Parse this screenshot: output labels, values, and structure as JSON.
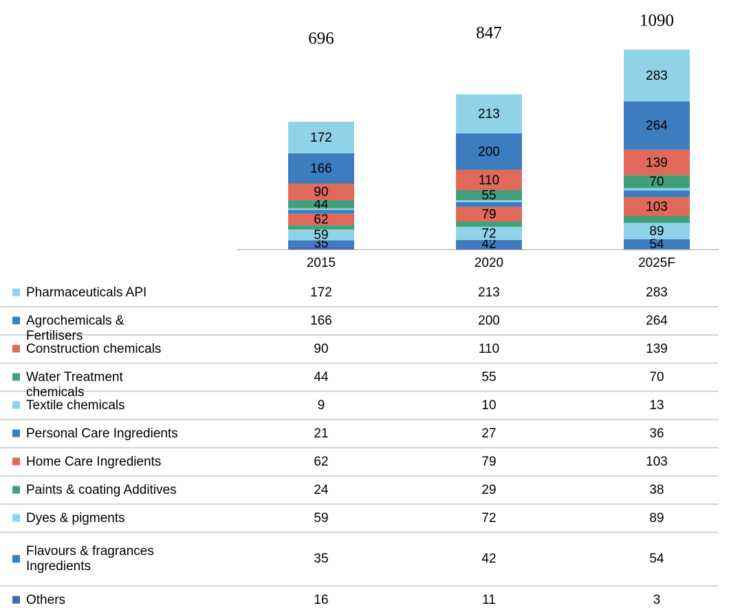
{
  "chart_data": {
    "type": "stacked_bar",
    "categories": [
      "2015",
      "2020",
      "2025F"
    ],
    "totals": [
      696,
      847,
      1090
    ],
    "ylim": [
      0,
      1100
    ],
    "series": [
      {
        "name": "Others",
        "color": "#4468b4",
        "values": [
          16,
          11,
          3
        ],
        "show_labels": false
      },
      {
        "name": "Flavours & fragrances Ingredients",
        "color": "#3e7cc0",
        "values": [
          35,
          42,
          54
        ],
        "show_labels": true
      },
      {
        "name": "Dyes & pigments",
        "color": "#90d3e9",
        "values": [
          59,
          72,
          89
        ],
        "show_labels": true
      },
      {
        "name": "Paints & coating Additives",
        "color": "#42a078",
        "values": [
          24,
          29,
          38
        ],
        "show_labels": false
      },
      {
        "name": "Home Care Ingredients",
        "color": "#e0695b",
        "values": [
          62,
          79,
          103
        ],
        "show_labels": true
      },
      {
        "name": "Personal Care Ingredients",
        "color": "#3e7cc0",
        "values": [
          21,
          27,
          36
        ],
        "show_labels": false
      },
      {
        "name": "Textile chemicals",
        "color": "#90d3e9",
        "values": [
          9,
          10,
          13
        ],
        "show_labels": false
      },
      {
        "name": "Water Treatment chemicals",
        "color": "#42a078",
        "values": [
          44,
          55,
          70
        ],
        "show_labels": true
      },
      {
        "name": "Construction chemicals",
        "color": "#e0695b",
        "values": [
          90,
          110,
          139
        ],
        "show_labels": true
      },
      {
        "name": "Agrochemicals & Fertilisers",
        "color": "#3e7cc0",
        "values": [
          166,
          200,
          264
        ],
        "show_labels": true
      },
      {
        "name": "Pharmaceuticals API",
        "color": "#90d3e9",
        "values": [
          172,
          213,
          283
        ],
        "show_labels": true
      }
    ]
  }
}
